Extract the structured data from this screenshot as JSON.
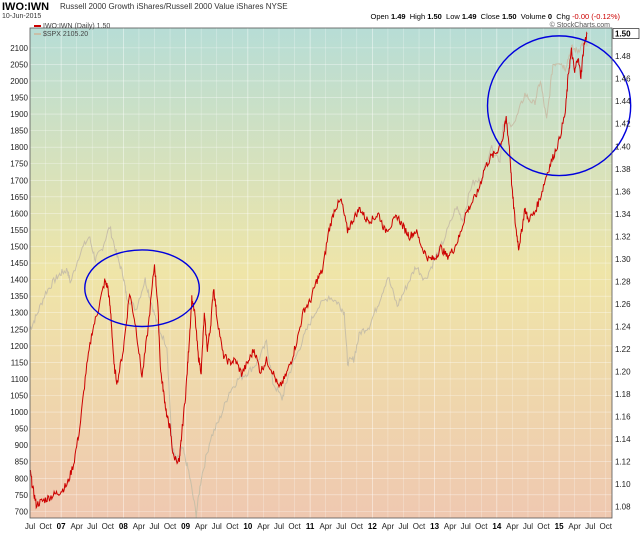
{
  "header": {
    "symbol": "IWO:IWN",
    "description": "Russell 2000 Growth iShares/Russell 2000 Value iShares NYSE",
    "date": "10-Jun-2015",
    "credit": "© StockCharts.com",
    "open_label": "Open",
    "open": "1.49",
    "high_label": "High",
    "high": "1.50",
    "low_label": "Low",
    "low": "1.49",
    "close_label": "Close",
    "close": "1.50",
    "volume_label": "Volume",
    "volume": "0",
    "chg_label": "Chg",
    "chg": "-0.00 (-0.12%)"
  },
  "legend": {
    "ratio_label": "IWO:IWN (Daily) 1.50",
    "spx_label": "$SPX 2105.20"
  },
  "colors": {
    "ratio": "#cc0000",
    "spx": "#c8bfa8",
    "circles": "#0000dd",
    "bg_top": "#b7ddd6",
    "bg_mid": "#efe5a8",
    "bg_bottom": "#efc8b0"
  },
  "chart_data": {
    "type": "line",
    "title": "IWO:IWN",
    "left_axis": {
      "label": "",
      "ylim": [
        680,
        2160
      ],
      "ticks": [
        700,
        750,
        800,
        850,
        900,
        950,
        1000,
        1050,
        1100,
        1150,
        1200,
        1250,
        1300,
        1350,
        1400,
        1450,
        1500,
        1550,
        1600,
        1650,
        1700,
        1750,
        1800,
        1850,
        1900,
        1950,
        2000,
        2050,
        2100
      ]
    },
    "right_axis": {
      "label": "",
      "ylim": [
        1.07,
        1.505
      ],
      "ticks": [
        "1.08",
        "1.10",
        "1.12",
        "1.14",
        "1.16",
        "1.18",
        "1.20",
        "1.22",
        "1.24",
        "1.26",
        "1.28",
        "1.30",
        "1.32",
        "1.34",
        "1.36",
        "1.38",
        "1.40",
        "1.42",
        "1.44",
        "1.46",
        "1.48"
      ],
      "last_value_label": "1.50",
      "spx_value_label": "2105.20"
    },
    "x_axis": {
      "range": [
        2006.5,
        2015.85
      ],
      "labels": [
        {
          "t": 2006.5,
          "text": "Jul",
          "bold": false
        },
        {
          "t": 2006.75,
          "text": "Oct",
          "bold": false
        },
        {
          "t": 2007.0,
          "text": "07",
          "bold": true
        },
        {
          "t": 2007.25,
          "text": "Apr",
          "bold": false
        },
        {
          "t": 2007.5,
          "text": "Jul",
          "bold": false
        },
        {
          "t": 2007.75,
          "text": "Oct",
          "bold": false
        },
        {
          "t": 2008.0,
          "text": "08",
          "bold": true
        },
        {
          "t": 2008.25,
          "text": "Apr",
          "bold": false
        },
        {
          "t": 2008.5,
          "text": "Jul",
          "bold": false
        },
        {
          "t": 2008.75,
          "text": "Oct",
          "bold": false
        },
        {
          "t": 2009.0,
          "text": "09",
          "bold": true
        },
        {
          "t": 2009.25,
          "text": "Apr",
          "bold": false
        },
        {
          "t": 2009.5,
          "text": "Jul",
          "bold": false
        },
        {
          "t": 2009.75,
          "text": "Oct",
          "bold": false
        },
        {
          "t": 2010.0,
          "text": "10",
          "bold": true
        },
        {
          "t": 2010.25,
          "text": "Apr",
          "bold": false
        },
        {
          "t": 2010.5,
          "text": "Jul",
          "bold": false
        },
        {
          "t": 2010.75,
          "text": "Oct",
          "bold": false
        },
        {
          "t": 2011.0,
          "text": "11",
          "bold": true
        },
        {
          "t": 2011.25,
          "text": "Apr",
          "bold": false
        },
        {
          "t": 2011.5,
          "text": "Jul",
          "bold": false
        },
        {
          "t": 2011.75,
          "text": "Oct",
          "bold": false
        },
        {
          "t": 2012.0,
          "text": "12",
          "bold": true
        },
        {
          "t": 2012.25,
          "text": "Apr",
          "bold": false
        },
        {
          "t": 2012.5,
          "text": "Jul",
          "bold": false
        },
        {
          "t": 2012.75,
          "text": "Oct",
          "bold": false
        },
        {
          "t": 2013.0,
          "text": "13",
          "bold": true
        },
        {
          "t": 2013.25,
          "text": "Apr",
          "bold": false
        },
        {
          "t": 2013.5,
          "text": "Jul",
          "bold": false
        },
        {
          "t": 2013.75,
          "text": "Oct",
          "bold": false
        },
        {
          "t": 2014.0,
          "text": "14",
          "bold": true
        },
        {
          "t": 2014.25,
          "text": "Apr",
          "bold": false
        },
        {
          "t": 2014.5,
          "text": "Jul",
          "bold": false
        },
        {
          "t": 2014.75,
          "text": "Oct",
          "bold": false
        },
        {
          "t": 2015.0,
          "text": "15",
          "bold": true
        },
        {
          "t": 2015.25,
          "text": "Apr",
          "bold": false
        },
        {
          "t": 2015.5,
          "text": "Jul",
          "bold": false
        },
        {
          "t": 2015.75,
          "text": "Oct",
          "bold": false
        }
      ]
    },
    "grid": true,
    "legend_position": "top-left",
    "series": [
      {
        "name": "IWO:IWN (Daily) 1.50",
        "axis": "right",
        "points": [
          [
            2006.5,
            1.112
          ],
          [
            2006.55,
            1.095
          ],
          [
            2006.6,
            1.082
          ],
          [
            2006.7,
            1.085
          ],
          [
            2006.8,
            1.088
          ],
          [
            2006.9,
            1.091
          ],
          [
            2007.0,
            1.094
          ],
          [
            2007.1,
            1.1
          ],
          [
            2007.2,
            1.118
          ],
          [
            2007.3,
            1.15
          ],
          [
            2007.4,
            1.2
          ],
          [
            2007.5,
            1.236
          ],
          [
            2007.6,
            1.256
          ],
          [
            2007.7,
            1.28
          ],
          [
            2007.75,
            1.275
          ],
          [
            2007.8,
            1.25
          ],
          [
            2007.85,
            1.205
          ],
          [
            2007.9,
            1.19
          ],
          [
            2008.0,
            1.22
          ],
          [
            2008.1,
            1.27
          ],
          [
            2008.2,
            1.24
          ],
          [
            2008.3,
            1.195
          ],
          [
            2008.4,
            1.24
          ],
          [
            2008.5,
            1.295
          ],
          [
            2008.55,
            1.262
          ],
          [
            2008.6,
            1.2
          ],
          [
            2008.65,
            1.18
          ],
          [
            2008.7,
            1.16
          ],
          [
            2008.75,
            1.15
          ],
          [
            2008.8,
            1.125
          ],
          [
            2008.9,
            1.12
          ],
          [
            2008.93,
            1.14
          ],
          [
            2009.0,
            1.18
          ],
          [
            2009.05,
            1.22
          ],
          [
            2009.1,
            1.265
          ],
          [
            2009.15,
            1.25
          ],
          [
            2009.2,
            1.215
          ],
          [
            2009.25,
            1.2
          ],
          [
            2009.3,
            1.25
          ],
          [
            2009.35,
            1.22
          ],
          [
            2009.4,
            1.24
          ],
          [
            2009.45,
            1.275
          ],
          [
            2009.5,
            1.25
          ],
          [
            2009.6,
            1.215
          ],
          [
            2009.7,
            1.208
          ],
          [
            2009.8,
            1.21
          ],
          [
            2009.9,
            1.198
          ],
          [
            2010.0,
            1.208
          ],
          [
            2010.1,
            1.22
          ],
          [
            2010.2,
            1.2
          ],
          [
            2010.3,
            1.21
          ],
          [
            2010.4,
            1.2
          ],
          [
            2010.5,
            1.185
          ],
          [
            2010.6,
            1.195
          ],
          [
            2010.7,
            1.21
          ],
          [
            2010.8,
            1.23
          ],
          [
            2010.9,
            1.255
          ],
          [
            2011.0,
            1.262
          ],
          [
            2011.1,
            1.28
          ],
          [
            2011.2,
            1.29
          ],
          [
            2011.3,
            1.325
          ],
          [
            2011.4,
            1.345
          ],
          [
            2011.5,
            1.352
          ],
          [
            2011.6,
            1.325
          ],
          [
            2011.7,
            1.336
          ],
          [
            2011.8,
            1.345
          ],
          [
            2011.9,
            1.335
          ],
          [
            2012.0,
            1.335
          ],
          [
            2012.1,
            1.34
          ],
          [
            2012.2,
            1.325
          ],
          [
            2012.3,
            1.33
          ],
          [
            2012.4,
            1.338
          ],
          [
            2012.5,
            1.328
          ],
          [
            2012.6,
            1.32
          ],
          [
            2012.7,
            1.325
          ],
          [
            2012.8,
            1.31
          ],
          [
            2012.9,
            1.3
          ],
          [
            2013.0,
            1.3
          ],
          [
            2013.1,
            1.31
          ],
          [
            2013.2,
            1.302
          ],
          [
            2013.3,
            1.308
          ],
          [
            2013.4,
            1.32
          ],
          [
            2013.5,
            1.34
          ],
          [
            2013.6,
            1.35
          ],
          [
            2013.7,
            1.36
          ],
          [
            2013.8,
            1.38
          ],
          [
            2013.9,
            1.39
          ],
          [
            2014.0,
            1.395
          ],
          [
            2014.1,
            1.408
          ],
          [
            2014.15,
            1.425
          ],
          [
            2014.2,
            1.4
          ],
          [
            2014.25,
            1.358
          ],
          [
            2014.3,
            1.33
          ],
          [
            2014.35,
            1.31
          ],
          [
            2014.4,
            1.325
          ],
          [
            2014.45,
            1.345
          ],
          [
            2014.5,
            1.335
          ],
          [
            2014.6,
            1.34
          ],
          [
            2014.7,
            1.355
          ],
          [
            2014.8,
            1.375
          ],
          [
            2014.9,
            1.39
          ],
          [
            2015.0,
            1.405
          ],
          [
            2015.1,
            1.43
          ],
          [
            2015.15,
            1.465
          ],
          [
            2015.2,
            1.485
          ],
          [
            2015.25,
            1.465
          ],
          [
            2015.3,
            1.48
          ],
          [
            2015.35,
            1.462
          ],
          [
            2015.4,
            1.49
          ],
          [
            2015.45,
            1.5
          ]
        ]
      },
      {
        "name": "$SPX 2105.20",
        "axis": "left",
        "points": [
          [
            2006.5,
            1250
          ],
          [
            2006.6,
            1290
          ],
          [
            2006.75,
            1360
          ],
          [
            2006.9,
            1400
          ],
          [
            2007.0,
            1420
          ],
          [
            2007.1,
            1430
          ],
          [
            2007.15,
            1390
          ],
          [
            2007.3,
            1480
          ],
          [
            2007.45,
            1530
          ],
          [
            2007.55,
            1460
          ],
          [
            2007.65,
            1490
          ],
          [
            2007.78,
            1560
          ],
          [
            2007.9,
            1470
          ],
          [
            2008.0,
            1410
          ],
          [
            2008.05,
            1350
          ],
          [
            2008.2,
            1310
          ],
          [
            2008.35,
            1400
          ],
          [
            2008.45,
            1330
          ],
          [
            2008.55,
            1260
          ],
          [
            2008.7,
            1200
          ],
          [
            2008.78,
            900
          ],
          [
            2008.85,
            850
          ],
          [
            2008.95,
            890
          ],
          [
            2009.05,
            820
          ],
          [
            2009.17,
            690
          ],
          [
            2009.25,
            800
          ],
          [
            2009.4,
            920
          ],
          [
            2009.55,
            980
          ],
          [
            2009.7,
            1060
          ],
          [
            2009.85,
            1100
          ],
          [
            2010.0,
            1120
          ],
          [
            2010.15,
            1150
          ],
          [
            2010.3,
            1210
          ],
          [
            2010.4,
            1090
          ],
          [
            2010.55,
            1040
          ],
          [
            2010.65,
            1110
          ],
          [
            2010.8,
            1180
          ],
          [
            2010.95,
            1250
          ],
          [
            2011.1,
            1310
          ],
          [
            2011.3,
            1350
          ],
          [
            2011.45,
            1330
          ],
          [
            2011.55,
            1300
          ],
          [
            2011.6,
            1150
          ],
          [
            2011.7,
            1160
          ],
          [
            2011.8,
            1240
          ],
          [
            2011.95,
            1260
          ],
          [
            2012.1,
            1330
          ],
          [
            2012.25,
            1410
          ],
          [
            2012.4,
            1320
          ],
          [
            2012.55,
            1380
          ],
          [
            2012.7,
            1440
          ],
          [
            2012.85,
            1400
          ],
          [
            2013.0,
            1460
          ],
          [
            2013.15,
            1520
          ],
          [
            2013.35,
            1620
          ],
          [
            2013.45,
            1580
          ],
          [
            2013.6,
            1690
          ],
          [
            2013.75,
            1700
          ],
          [
            2013.9,
            1800
          ],
          [
            2014.05,
            1760
          ],
          [
            2014.1,
            1860
          ],
          [
            2014.3,
            1880
          ],
          [
            2014.45,
            1960
          ],
          [
            2014.6,
            1930
          ],
          [
            2014.7,
            2000
          ],
          [
            2014.8,
            1880
          ],
          [
            2014.9,
            2050
          ],
          [
            2015.0,
            2060
          ],
          [
            2015.1,
            2040
          ],
          [
            2015.2,
            2100
          ],
          [
            2015.3,
            2090
          ],
          [
            2015.4,
            2120
          ],
          [
            2015.45,
            2105
          ]
        ]
      }
    ],
    "annotations": [
      {
        "shape": "ellipse",
        "cx_t": 2008.3,
        "cy": 1.274,
        "rx_t": 0.92,
        "ry": 0.034
      },
      {
        "shape": "ellipse",
        "cx_t": 2015.0,
        "cy": 1.436,
        "rx_t": 1.15,
        "ry": 0.062
      }
    ]
  }
}
